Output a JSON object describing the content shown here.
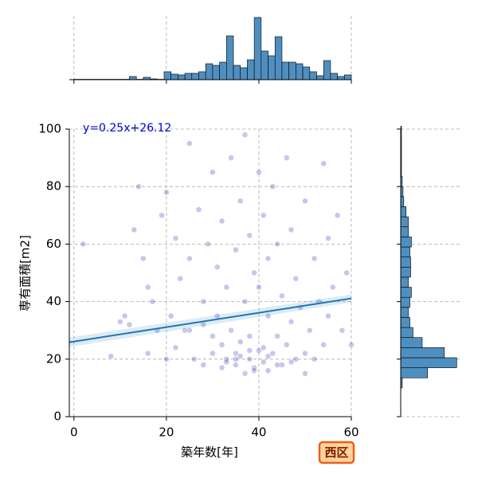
{
  "chart_data": {
    "type": "scatter",
    "x_label": "築年数[年]",
    "y_label": "専有面積[m2]",
    "annotation": "y=0.25x+26.12",
    "badge": "西区",
    "regression": {
      "slope": 0.25,
      "intercept": 26.12,
      "color": "#1f77b4"
    },
    "xlim": [
      -1,
      60
    ],
    "ylim": [
      0,
      100
    ],
    "xticks": [
      0,
      20,
      40,
      60
    ],
    "yticks": [
      0,
      20,
      40,
      60,
      80,
      100
    ],
    "grid": true,
    "point_color": "#0000aa",
    "x": [
      2,
      8,
      10,
      11,
      12,
      13,
      14,
      15,
      16,
      16,
      17,
      18,
      19,
      20,
      20,
      21,
      22,
      22,
      23,
      24,
      25,
      25,
      26,
      27,
      28,
      28,
      29,
      30,
      30,
      31,
      31,
      32,
      32,
      32,
      33,
      33,
      34,
      34,
      35,
      35,
      35,
      36,
      36,
      37,
      37,
      37,
      38,
      38,
      38,
      39,
      39,
      40,
      40,
      40,
      41,
      41,
      42,
      42,
      42,
      43,
      43,
      44,
      44,
      45,
      45,
      46,
      46,
      47,
      47,
      48,
      48,
      49,
      50,
      50,
      51,
      52,
      52,
      53,
      54,
      54,
      55,
      55,
      56,
      57,
      58,
      59,
      60,
      33,
      36,
      39,
      41,
      44,
      30,
      35,
      38,
      42,
      47,
      25,
      28,
      50
    ],
    "y": [
      60,
      21,
      33,
      35,
      32,
      65,
      80,
      55,
      45,
      22,
      40,
      30,
      70,
      20,
      78,
      35,
      62,
      24,
      48,
      30,
      95,
      55,
      20,
      72,
      40,
      18,
      60,
      22,
      85,
      35,
      52,
      17,
      25,
      68,
      20,
      45,
      30,
      90,
      18,
      58,
      22,
      75,
      26,
      15,
      40,
      98,
      20,
      63,
      28,
      17,
      50,
      23,
      85,
      45,
      19,
      70,
      16,
      55,
      35,
      22,
      80,
      28,
      60,
      18,
      42,
      25,
      90,
      33,
      65,
      20,
      48,
      38,
      22,
      75,
      30,
      55,
      20,
      40,
      88,
      25,
      62,
      35,
      45,
      70,
      30,
      50,
      25,
      19,
      21,
      16,
      24,
      18,
      28,
      20,
      23,
      21,
      19,
      30,
      32,
      15
    ],
    "hist_color": "#4f8fc0",
    "x_hist": {
      "bins": [
        0,
        1.5,
        3,
        4.5,
        6,
        7.5,
        9,
        10.5,
        12,
        13.5,
        15,
        16.5,
        18,
        19.5,
        21,
        22.5,
        24,
        25.5,
        27,
        28.5,
        30,
        31.5,
        33,
        34.5,
        36,
        37.5,
        39,
        40.5,
        42,
        43.5,
        45,
        46.5,
        48,
        49.5,
        51,
        52.5,
        54,
        55.5,
        57,
        58.5,
        60
      ],
      "counts": [
        0.5,
        0.5,
        0.5,
        0.5,
        0.5,
        0.5,
        0.5,
        0.5,
        4,
        0.5,
        3,
        1,
        0.5,
        10,
        7,
        6,
        8,
        8,
        10,
        20,
        18,
        22,
        55,
        18,
        15,
        25,
        78,
        36,
        30,
        54,
        22,
        22,
        20,
        16,
        10,
        5,
        24,
        8,
        4,
        6
      ],
      "ylim": [
        0,
        80
      ]
    },
    "y_hist": {
      "bins": [
        10,
        13.5,
        17,
        20.5,
        24,
        27.5,
        31,
        34.5,
        38,
        41.5,
        45,
        48.5,
        52,
        55.5,
        59,
        62.5,
        66,
        69.5,
        73,
        76.5,
        80,
        83.5,
        87,
        90.5,
        94,
        97.5,
        101
      ],
      "counts": [
        2,
        35,
        73,
        57,
        28,
        16,
        12,
        10,
        12,
        14,
        10,
        13,
        13,
        12,
        14,
        10,
        10,
        7,
        4,
        3,
        2,
        1,
        1,
        1,
        1,
        1
      ],
      "xlim": [
        0,
        80
      ]
    }
  }
}
